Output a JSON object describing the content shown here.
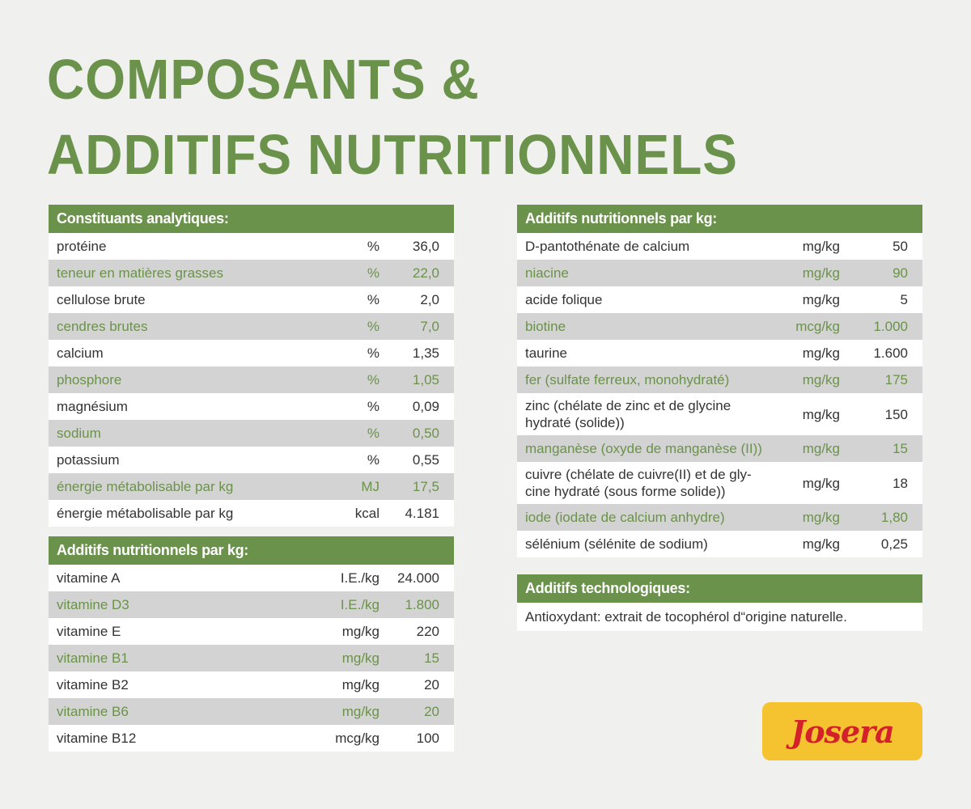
{
  "title": {
    "line1": "COMPOSANTS &",
    "line2": "ADDITIFS NUTRITIONNELS"
  },
  "analytic": {
    "header": "Constituants analytiques:",
    "rows": [
      {
        "label": "protéine",
        "unit": "%",
        "value": "36,0"
      },
      {
        "label": "teneur en matières grasses",
        "unit": "%",
        "value": "22,0"
      },
      {
        "label": "cellulose brute",
        "unit": "%",
        "value": "2,0"
      },
      {
        "label": "cendres brutes",
        "unit": "%",
        "value": "7,0"
      },
      {
        "label": "calcium",
        "unit": "%",
        "value": "1,35"
      },
      {
        "label": "phosphore",
        "unit": "%",
        "value": "1,05"
      },
      {
        "label": "magnésium",
        "unit": "%",
        "value": "0,09"
      },
      {
        "label": "sodium",
        "unit": "%",
        "value": "0,50"
      },
      {
        "label": "potassium",
        "unit": "%",
        "value": "0,55"
      },
      {
        "label": "énergie métabolisable par kg",
        "unit": "MJ",
        "value": "17,5"
      },
      {
        "label": "énergie métabolisable par kg",
        "unit": "kcal",
        "value": "4.181"
      }
    ]
  },
  "vitamins": {
    "header": "Additifs nutritionnels par kg:",
    "rows": [
      {
        "label": "vitamine A",
        "unit": "I.E./kg",
        "value": "24.000"
      },
      {
        "label": "vitamine D3",
        "unit": "I.E./kg",
        "value": "1.800"
      },
      {
        "label": "vitamine E",
        "unit": "mg/kg",
        "value": "220"
      },
      {
        "label": "vitamine B1",
        "unit": "mg/kg",
        "value": "15"
      },
      {
        "label": "vitamine B2",
        "unit": "mg/kg",
        "value": "20"
      },
      {
        "label": "vitamine B6",
        "unit": "mg/kg",
        "value": "20"
      },
      {
        "label": "vitamine B12",
        "unit": "mcg/kg",
        "value": "100"
      }
    ]
  },
  "additives": {
    "header": "Additifs nutritionnels par kg:",
    "rows": [
      {
        "label": "D-pantothénate de calcium",
        "unit": "mg/kg",
        "value": "50"
      },
      {
        "label": "niacine",
        "unit": "mg/kg",
        "value": "90"
      },
      {
        "label": "acide folique",
        "unit": "mg/kg",
        "value": "5"
      },
      {
        "label": "biotine",
        "unit": "mcg/kg",
        "value": "1.000"
      },
      {
        "label": "taurine",
        "unit": "mg/kg",
        "value": "1.600"
      },
      {
        "label": "fer (sulfate ferreux, monohydraté)",
        "unit": "mg/kg",
        "value": "175"
      },
      {
        "label": "zinc (chélate de zinc et de glycine hydraté (solide))",
        "unit": "mg/kg",
        "value": "150"
      },
      {
        "label": "manganèse (oxyde de manganèse (II))",
        "unit": "mg/kg",
        "value": "15"
      },
      {
        "label": "cuivre (chélate de cuivre(II) et de gly-cine hydraté (sous forme solide))",
        "unit": "mg/kg",
        "value": "18"
      },
      {
        "label": "iode (iodate de calcium anhydre)",
        "unit": "mg/kg",
        "value": "1,80"
      },
      {
        "label": "sélénium (sélénite de sodium)",
        "unit": "mg/kg",
        "value": "0,25"
      }
    ]
  },
  "tech": {
    "header": "Additifs technologiques:",
    "text": "Antioxydant: extrait de tocophérol d“origine naturelle."
  },
  "logo": {
    "text": "Josera"
  },
  "colors": {
    "accent": "#6b924a",
    "row_alt": "#d3d3d3",
    "logo_bg": "#f5c330",
    "logo_text": "#d4202a"
  }
}
